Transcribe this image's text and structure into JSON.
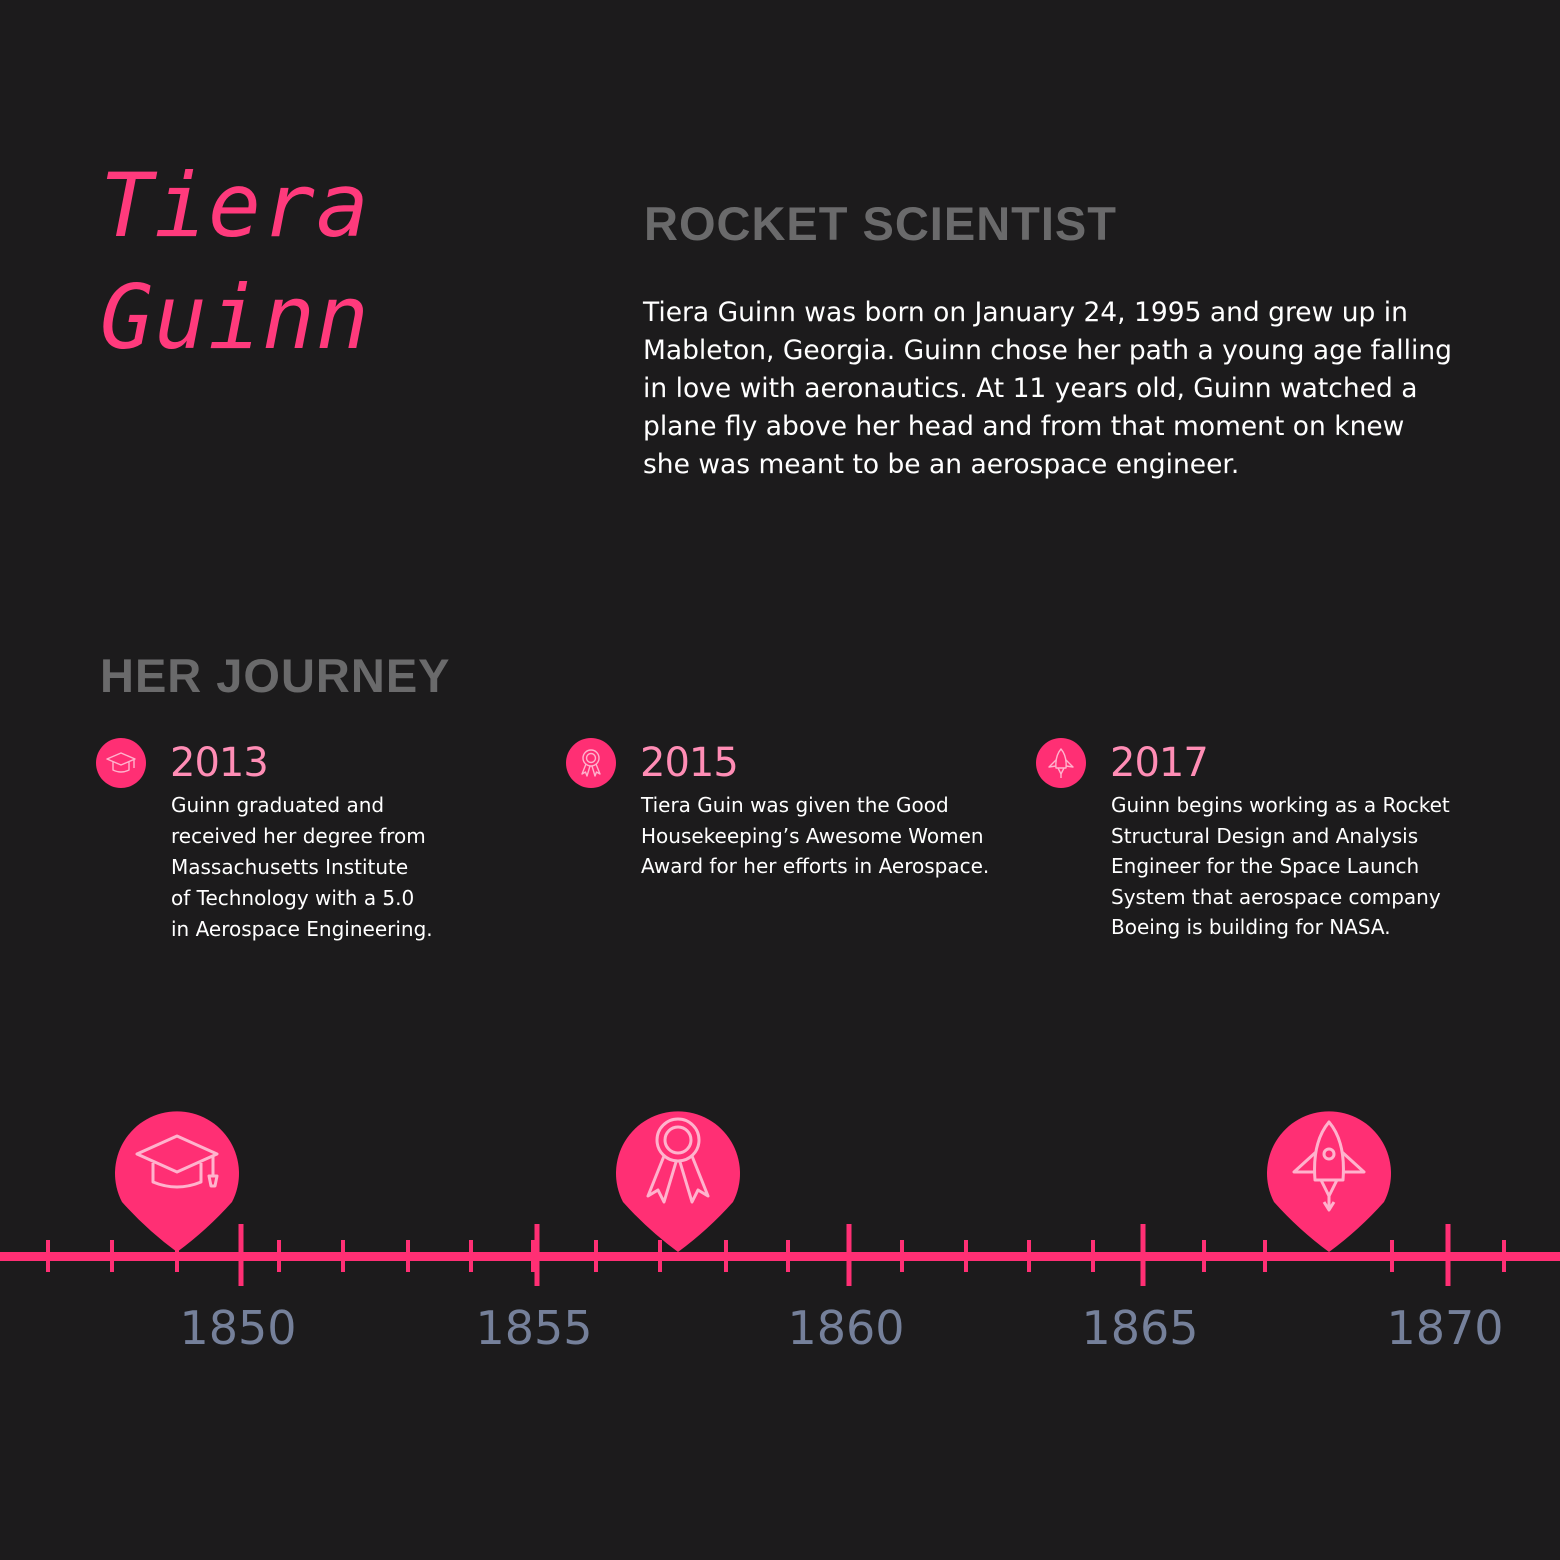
{
  "header": {
    "first_name": "Tiera",
    "last_name": "Guinn",
    "role": "ROCKET SCIENTIST",
    "bio": "Tiera Guinn was born on January 24, 1995 and grew up in Mableton, Georgia. Guinn chose her path a young age falling in love with aeronautics. At 11 years old, Guinn watched a plane fly above her head and from that moment on knew she was meant to be an aerospace engineer."
  },
  "journey": {
    "title": "HER JOURNEY",
    "events": [
      {
        "year": "2013",
        "icon": "graduation-cap-icon",
        "lines": [
          "Guinn graduated and",
          "received her degree from",
          "Massachusetts Institute",
          "of Technology with a 5.0",
          "in Aerospace Engineering."
        ]
      },
      {
        "year": "2015",
        "icon": "award-ribbon-icon",
        "lines": [
          "Tiera Guin was given the Good",
          "Housekeeping’s Awesome Women",
          "Award for her efforts in Aerospace."
        ]
      },
      {
        "year": "2017",
        "icon": "rocket-icon",
        "lines": [
          "Guinn begins working as a Rocket",
          "Structural Design and Analysis",
          "Engineer for the Space Launch",
          "System that aerospace company",
          "Boeing is building for NASA."
        ]
      }
    ]
  },
  "timeline": {
    "labels": [
      "1850",
      "1855",
      "1860",
      "1865",
      "1870"
    ],
    "pins": [
      {
        "icon": "graduation-cap-icon",
        "value": 1848.9
      },
      {
        "icon": "award-ribbon-icon",
        "value": 1857.3
      },
      {
        "icon": "rocket-icon",
        "value": 1868.3
      }
    ],
    "colors": {
      "line": "#ff2f74",
      "pin": "#ff2f74",
      "label": "#75809a",
      "icon_stroke": "#ffb3cd"
    }
  }
}
